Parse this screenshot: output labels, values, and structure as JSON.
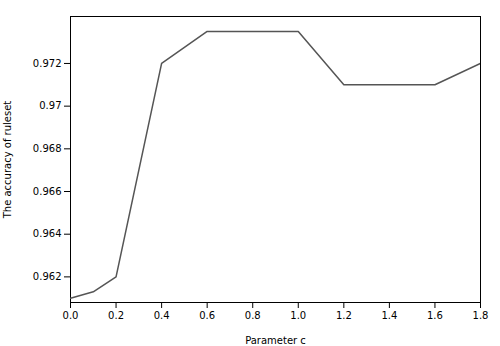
{
  "chart_data": {
    "type": "line",
    "x": [
      0.0,
      0.1,
      0.2,
      0.4,
      0.6,
      0.8,
      1.0,
      1.2,
      1.4,
      1.6,
      1.8
    ],
    "values": [
      0.961,
      0.9613,
      0.962,
      0.972,
      0.9735,
      0.9735,
      0.9735,
      0.971,
      0.971,
      0.971,
      0.972
    ],
    "color": "#555555",
    "xlabel": "Parameter c",
    "ylabel": "The accuracy of ruleset",
    "xlim": [
      0.0,
      1.8
    ],
    "ylim": [
      0.9608,
      0.9742
    ],
    "xticks": [
      {
        "value": 0,
        "label": "0.0"
      },
      0.2,
      0.4,
      0.6,
      0.8,
      {
        "value": 1,
        "label": "1.0"
      },
      1.2,
      1.4,
      1.6,
      1.8
    ],
    "yticks": [
      0.962,
      0.964,
      0.966,
      0.968,
      0.97,
      0.972
    ],
    "grid": false
  }
}
